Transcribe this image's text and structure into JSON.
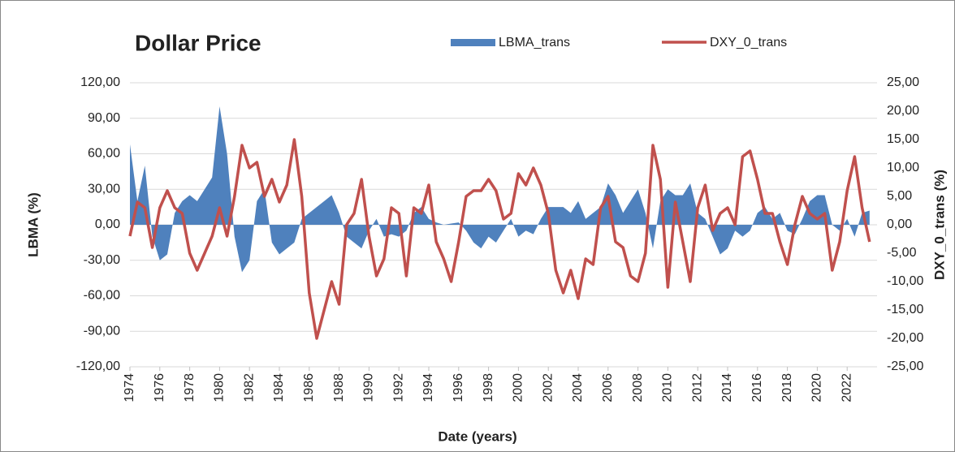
{
  "chart_data": {
    "type": "area-line",
    "title": "Dollar Price",
    "x_label": "Date (years)",
    "y_label": "LBMA (%)",
    "y2_label": "DXY_0_trans (%)",
    "x": [
      1974,
      1974.5,
      1975,
      1975.5,
      1976,
      1976.5,
      1977,
      1977.5,
      1978,
      1978.5,
      1979,
      1979.5,
      1980,
      1980.5,
      1981,
      1981.5,
      1982,
      1982.5,
      1983,
      1983.5,
      1984,
      1984.5,
      1985,
      1985.5,
      1986,
      1986.5,
      1987,
      1987.5,
      1988,
      1988.5,
      1989,
      1989.5,
      1990,
      1990.5,
      1991,
      1991.5,
      1992,
      1992.5,
      1993,
      1993.5,
      1994,
      1994.5,
      1995,
      1995.5,
      1996,
      1996.5,
      1997,
      1997.5,
      1998,
      1998.5,
      1999,
      1999.5,
      2000,
      2000.5,
      2001,
      2001.5,
      2002,
      2002.5,
      2003,
      2003.5,
      2004,
      2004.5,
      2005,
      2005.5,
      2006,
      2006.5,
      2007,
      2007.5,
      2008,
      2008.5,
      2009,
      2009.5,
      2010,
      2010.5,
      2011,
      2011.5,
      2012,
      2012.5,
      2013,
      2013.5,
      2014,
      2014.5,
      2015,
      2015.5,
      2016,
      2016.5,
      2017,
      2017.5,
      2018,
      2018.5,
      2019,
      2019.5,
      2020,
      2020.5,
      2021,
      2021.5,
      2022,
      2022.5,
      2023,
      2023.5
    ],
    "series": [
      {
        "name": "LBMA_trans",
        "color": "#4f81bd",
        "axis": "y",
        "kind": "area",
        "values": [
          68,
          20,
          50,
          -10,
          -30,
          -25,
          10,
          20,
          25,
          20,
          30,
          40,
          100,
          60,
          -10,
          -40,
          -30,
          20,
          30,
          -15,
          -25,
          -20,
          -15,
          5,
          10,
          15,
          20,
          25,
          10,
          -10,
          -15,
          -20,
          -5,
          5,
          -10,
          -8,
          -10,
          -5,
          10,
          15,
          5,
          2,
          0,
          1,
          2,
          -5,
          -15,
          -20,
          -10,
          -15,
          -5,
          5,
          -10,
          -5,
          -8,
          5,
          15,
          15,
          15,
          10,
          20,
          5,
          10,
          15,
          35,
          25,
          10,
          20,
          30,
          10,
          -20,
          20,
          30,
          25,
          25,
          35,
          10,
          5,
          -10,
          -25,
          -20,
          -5,
          -10,
          -5,
          10,
          15,
          5,
          10,
          -5,
          -8,
          5,
          20,
          25,
          25,
          0,
          -5,
          5,
          -10,
          10,
          12
        ]
      },
      {
        "name": "DXY_0_trans",
        "color": "#c0504d",
        "axis": "y2",
        "kind": "line",
        "values": [
          -2,
          4,
          3,
          -4,
          3,
          6,
          3,
          2,
          -5,
          -8,
          -5,
          -2,
          3,
          -2,
          5,
          14,
          10,
          11,
          5,
          8,
          4,
          7,
          15,
          5,
          -12,
          -20,
          -15,
          -10,
          -14,
          0,
          2,
          8,
          -2,
          -9,
          -6,
          3,
          2,
          -9,
          3,
          2,
          7,
          -3,
          -6,
          -10,
          -3,
          5,
          6,
          6,
          8,
          6,
          1,
          2,
          9,
          7,
          10,
          7,
          2,
          -8,
          -12,
          -8,
          -13,
          -6,
          -7,
          3,
          5,
          -3,
          -4,
          -9,
          -10,
          -5,
          14,
          8,
          -11,
          4,
          -3,
          -10,
          3,
          7,
          -1,
          2,
          3,
          0,
          12,
          13,
          8,
          2,
          2,
          -3,
          -7,
          0,
          5,
          2,
          1,
          2,
          -8,
          -3,
          6,
          12,
          3,
          -3
        ]
      }
    ],
    "xlim": [
      1974,
      2024
    ],
    "xticks": [
      1974,
      1976,
      1978,
      1980,
      1982,
      1984,
      1986,
      1988,
      1990,
      1992,
      1994,
      1996,
      1998,
      2000,
      2002,
      2004,
      2006,
      2008,
      2010,
      2012,
      2014,
      2016,
      2018,
      2020,
      2022
    ],
    "ylim": [
      -120,
      120
    ],
    "yticks": [
      {
        "value": -120,
        "label": "-120,00"
      },
      {
        "value": -90,
        "label": "-90,00"
      },
      {
        "value": -60,
        "label": "-60,00"
      },
      {
        "value": -30,
        "label": "-30,00"
      },
      {
        "value": 0,
        "label": "0,00"
      },
      {
        "value": 30,
        "label": "30,00"
      },
      {
        "value": 60,
        "label": "60,00"
      },
      {
        "value": 90,
        "label": "90,00"
      },
      {
        "value": 120,
        "label": "120,00"
      }
    ],
    "y2lim": [
      -25,
      25
    ],
    "y2ticks": [
      {
        "value": -25,
        "label": "-25,00"
      },
      {
        "value": -20,
        "label": "-20,00"
      },
      {
        "value": -15,
        "label": "-15,00"
      },
      {
        "value": -10,
        "label": "-10,00"
      },
      {
        "value": -5,
        "label": "-5,00"
      },
      {
        "value": 0,
        "label": "0,00"
      },
      {
        "value": 5,
        "label": "5,00"
      },
      {
        "value": 10,
        "label": "10,00"
      },
      {
        "value": 15,
        "label": "15,00"
      },
      {
        "value": 20,
        "label": "20,00"
      },
      {
        "value": 25,
        "label": "25,00"
      }
    ],
    "grid": true,
    "legend": "top"
  }
}
